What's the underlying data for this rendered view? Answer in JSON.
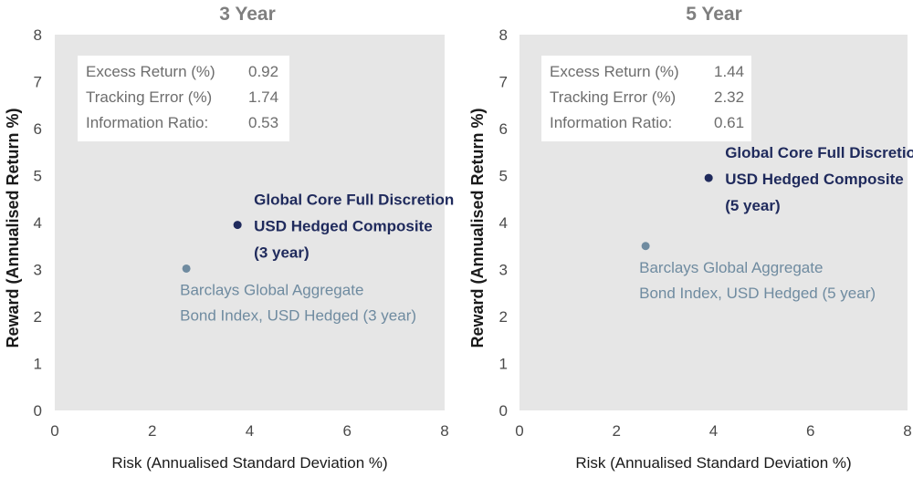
{
  "chart_data": [
    {
      "type": "scatter",
      "title": "3 Year",
      "xlabel": "Risk (Annualised Standard Deviation %)",
      "ylabel": "Reward (Annualised Return %)",
      "xlim": [
        0,
        8
      ],
      "ylim": [
        0,
        8
      ],
      "xticks": [
        "0",
        "2",
        "4",
        "6",
        "8"
      ],
      "yticks": [
        "0",
        "1",
        "2",
        "3",
        "4",
        "5",
        "6",
        "7",
        "8"
      ],
      "stats": [
        {
          "label": "Excess Return (%)",
          "value": "0.92"
        },
        {
          "label": "Tracking Error (%)",
          "value": "1.74"
        },
        {
          "label": "Information Ratio:",
          "value": "0.53"
        }
      ],
      "points": [
        {
          "name": "composite",
          "x": 3.75,
          "y": 3.95,
          "color": "#1f2a5c",
          "label_lines": [
            "Global Core Full Discretion",
            "USD Hedged Composite",
            "(3 year)"
          ]
        },
        {
          "name": "benchmark",
          "x": 2.7,
          "y": 3.02,
          "color": "#6f8ba0",
          "label_lines": [
            "Barclays Global Aggregate",
            "Bond Index, USD Hedged (3 year)"
          ]
        }
      ]
    },
    {
      "type": "scatter",
      "title": "5 Year",
      "xlabel": "Risk (Annualised Standard Deviation %)",
      "ylabel": "Reward (Annualised Return %)",
      "xlim": [
        0,
        8
      ],
      "ylim": [
        0,
        8
      ],
      "xticks": [
        "0",
        "2",
        "4",
        "6",
        "8"
      ],
      "yticks": [
        "0",
        "1",
        "2",
        "3",
        "4",
        "5",
        "6",
        "7",
        "8"
      ],
      "stats": [
        {
          "label": "Excess Return (%)",
          "value": "1.44"
        },
        {
          "label": "Tracking Error (%)",
          "value": "2.32"
        },
        {
          "label": "Information Ratio:",
          "value": "0.61"
        }
      ],
      "points": [
        {
          "name": "composite",
          "x": 3.9,
          "y": 4.95,
          "color": "#1f2a5c",
          "label_lines": [
            "Global Core Full Discretion",
            "USD Hedged Composite",
            "(5 year)"
          ]
        },
        {
          "name": "benchmark",
          "x": 2.6,
          "y": 3.5,
          "color": "#6f8ba0",
          "label_lines": [
            "Barclays Global Aggregate",
            "Bond Index, USD Hedged (5 year)"
          ]
        }
      ]
    }
  ]
}
